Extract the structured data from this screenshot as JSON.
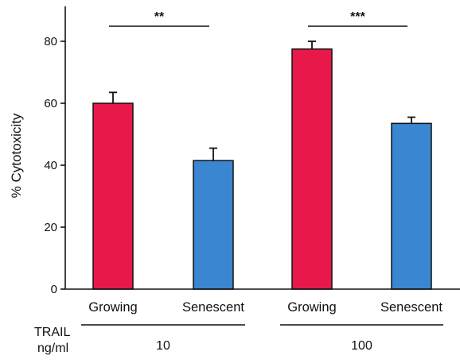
{
  "chart_data": {
    "type": "bar",
    "ylabel": "% Cytotoxicity",
    "ylim": [
      0,
      90
    ],
    "yticks": [
      0,
      20,
      40,
      60,
      80
    ],
    "categories": [
      "Growing",
      "Senescent",
      "Growing",
      "Senescent"
    ],
    "values": [
      60,
      41.5,
      77.5,
      53.5
    ],
    "errors": [
      3.5,
      4,
      2.5,
      2
    ],
    "bar_colors": [
      "#e8194a",
      "#3a86d0",
      "#e8194a",
      "#3a86d0"
    ],
    "groups": [
      {
        "label": "10",
        "members": [
          0,
          1
        ]
      },
      {
        "label": "100",
        "members": [
          2,
          3
        ]
      }
    ],
    "group_axis_label": [
      "TRAIL",
      "ng/ml"
    ],
    "significance": [
      {
        "from": 0,
        "to": 1,
        "label": "**"
      },
      {
        "from": 2,
        "to": 3,
        "label": "***"
      }
    ],
    "grid": false
  }
}
